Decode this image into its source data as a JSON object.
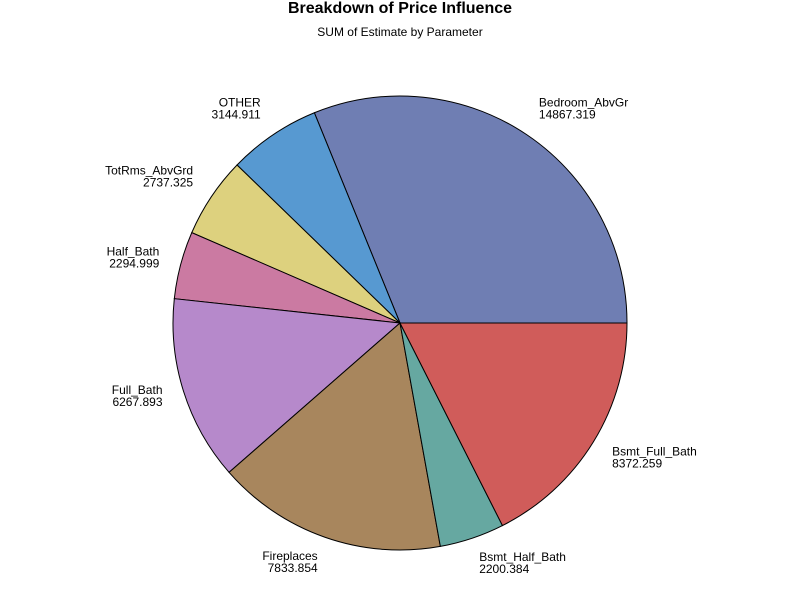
{
  "chart_data": {
    "type": "pie",
    "title": "Breakdown of Price Influence",
    "subtitle": "SUM of Estimate by Parameter",
    "slices": [
      {
        "label": "Bedroom_AbvGr",
        "value_text": "14867.319",
        "value": 14867.319,
        "color": "#6f7eb3"
      },
      {
        "label": "OTHER",
        "value_text": "3144.911",
        "value": 3144.911,
        "color": "#5799d1"
      },
      {
        "label": "TotRms_AbvGrd",
        "value_text": "2737.325",
        "value": 2737.325,
        "color": "#ddd17e"
      },
      {
        "label": "Half_Bath",
        "value_text": "2294.999",
        "value": 2294.999,
        "color": "#cb7aa2"
      },
      {
        "label": "Full_Bath",
        "value_text": "6267.893",
        "value": 6267.893,
        "color": "#b689cb"
      },
      {
        "label": "Fireplaces",
        "value_text": "7833.854",
        "value": 7833.854,
        "color": "#a8865d"
      },
      {
        "label": "Bsmt_Half_Bath",
        "value_text": "2200.384",
        "value": 2200.384,
        "color": "#66a8a1"
      },
      {
        "label": "Bsmt_Full_Bath",
        "value_text": "8372.259",
        "value": 8372.259,
        "color": "#d05c5a"
      }
    ]
  }
}
